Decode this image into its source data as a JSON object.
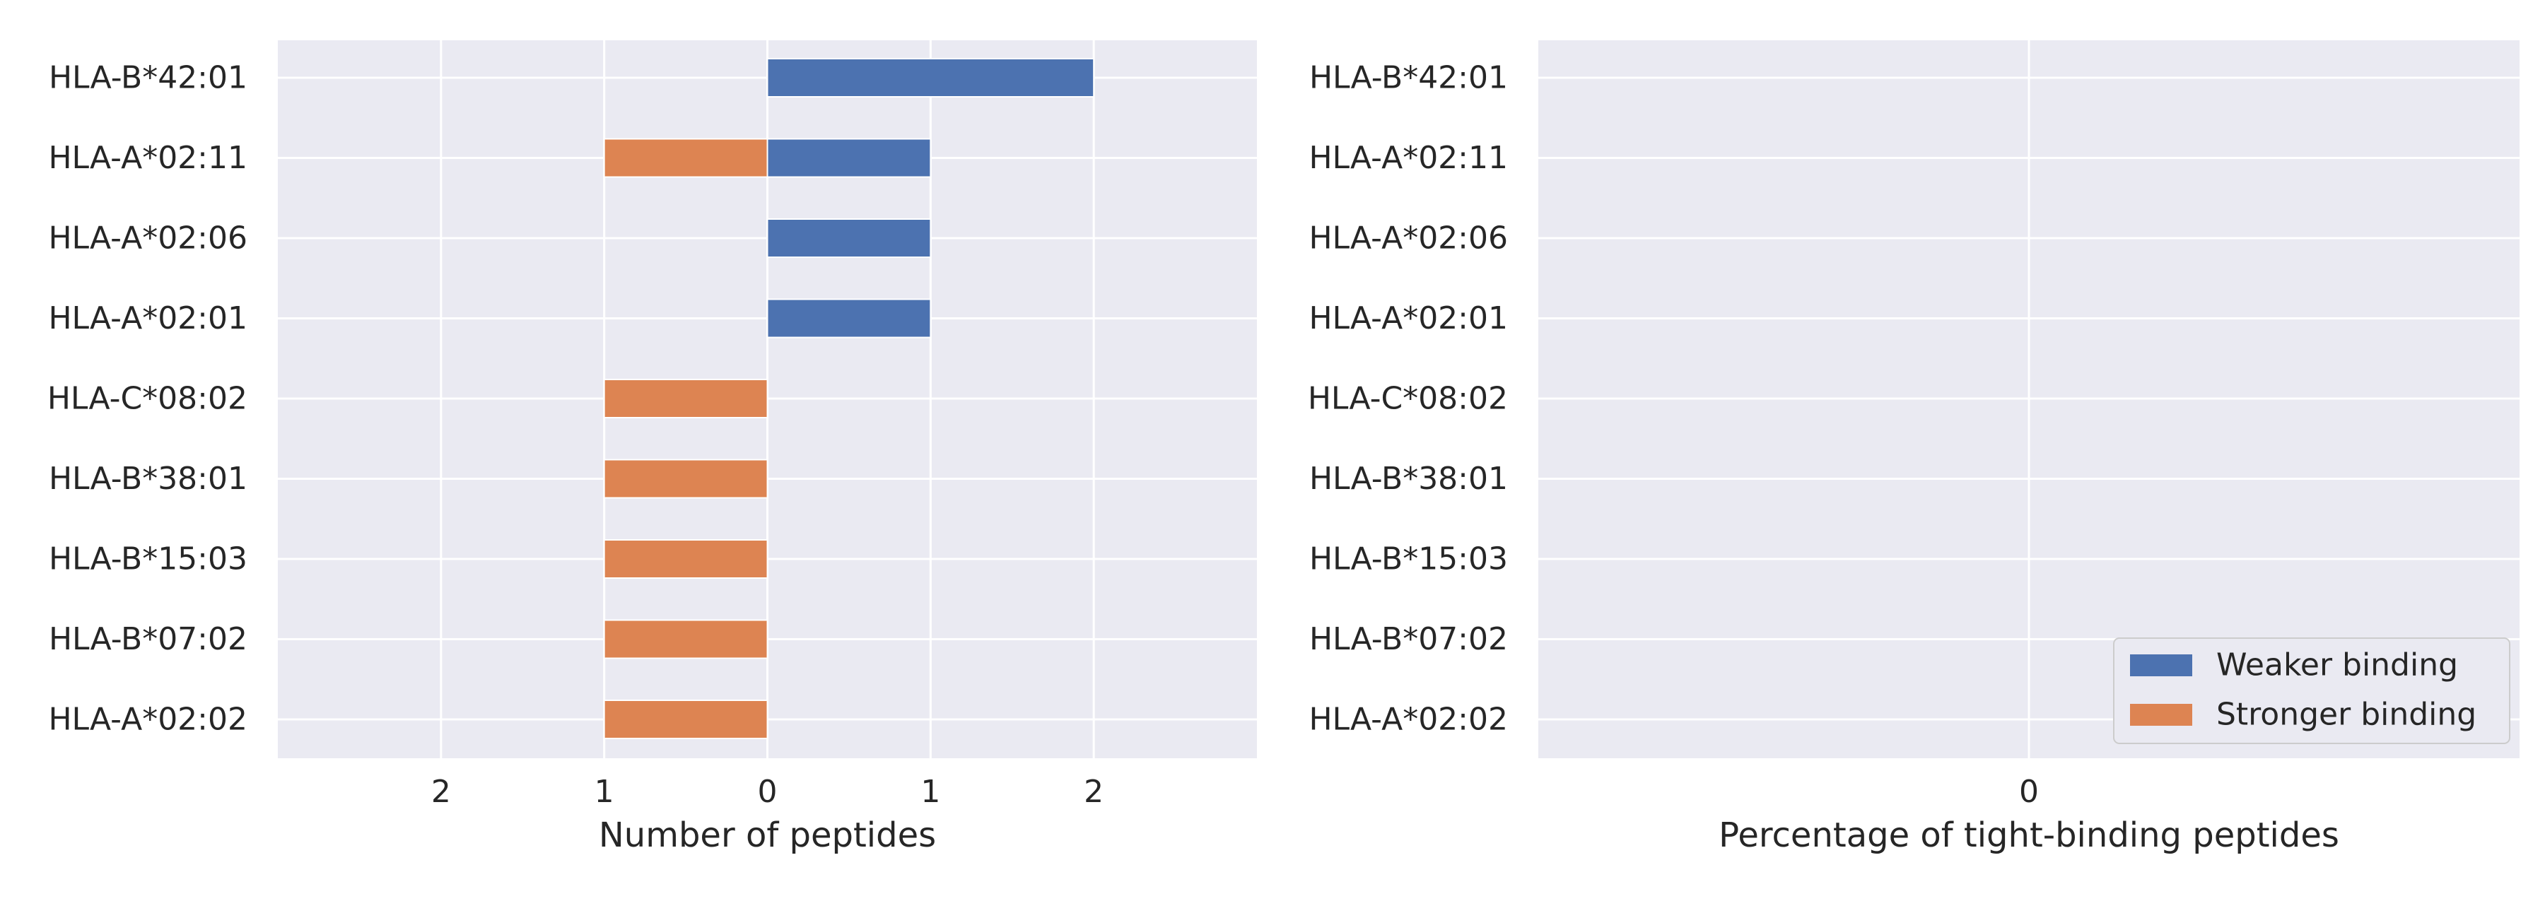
{
  "colors": {
    "background": "#eaeaf2",
    "grid": "#ffffff",
    "weaker": "#4c72b0",
    "stronger": "#dd8452",
    "text": "#262626"
  },
  "chart_data": [
    {
      "type": "bar",
      "orientation": "horizontal",
      "diverging": true,
      "categories": [
        "HLA-B*42:01",
        "HLA-A*02:11",
        "HLA-A*02:06",
        "HLA-A*02:01",
        "HLA-C*08:02",
        "HLA-B*38:01",
        "HLA-B*15:03",
        "HLA-B*07:02",
        "HLA-A*02:02"
      ],
      "series": [
        {
          "name": "Weaker binding",
          "values": [
            2,
            1,
            1,
            1,
            0,
            0,
            0,
            0,
            0
          ],
          "side": "right"
        },
        {
          "name": "Stronger binding",
          "values": [
            0,
            1,
            0,
            0,
            1,
            1,
            1,
            1,
            1
          ],
          "side": "left"
        }
      ],
      "xlabel": "Number of peptides",
      "ylabel": "",
      "xticks": [
        "2",
        "1",
        "0",
        "1",
        "2"
      ],
      "xlim": [
        -3,
        3
      ],
      "grid": true
    },
    {
      "type": "bar",
      "orientation": "horizontal",
      "categories": [
        "HLA-B*42:01",
        "HLA-A*02:11",
        "HLA-A*02:06",
        "HLA-A*02:01",
        "HLA-C*08:02",
        "HLA-B*38:01",
        "HLA-B*15:03",
        "HLA-B*07:02",
        "HLA-A*02:02"
      ],
      "series": [],
      "xlabel": "Percentage of tight-binding peptides",
      "ylabel": "",
      "xticks": [
        "0"
      ],
      "grid": true,
      "legend": {
        "placement": "lower-right",
        "entries": [
          "Weaker binding",
          "Stronger binding"
        ]
      }
    }
  ]
}
